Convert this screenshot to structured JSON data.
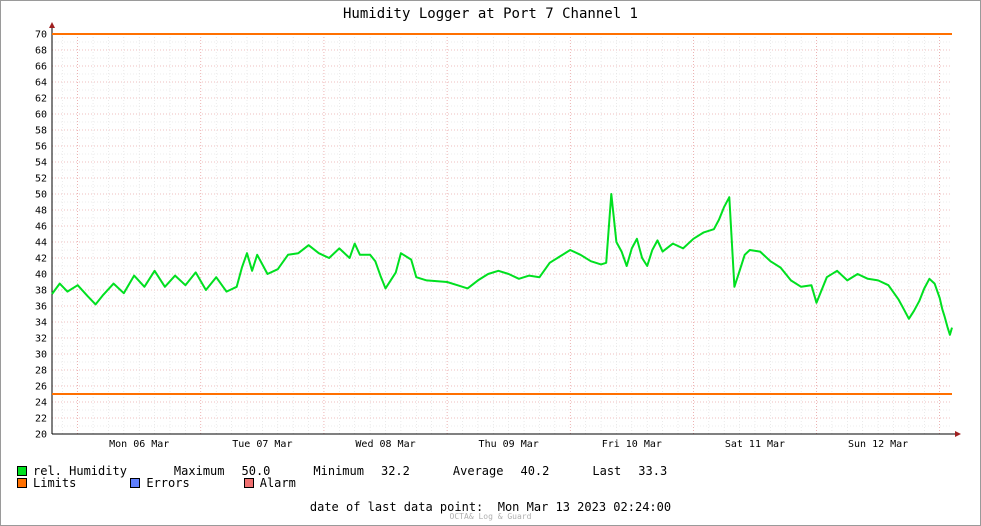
{
  "chart_data": {
    "type": "line",
    "title": "Humidity Logger at Port 7 Channel 1",
    "ylim": [
      20,
      70
    ],
    "y_ticks": [
      20,
      22,
      24,
      26,
      28,
      30,
      32,
      34,
      36,
      38,
      40,
      42,
      44,
      46,
      48,
      50,
      52,
      54,
      56,
      58,
      60,
      62,
      64,
      66,
      68,
      70
    ],
    "x_tick_labels": [
      "Mon 06 Mar",
      "Tue 07 Mar",
      "Wed 08 Mar",
      "Thu 09 Mar",
      "Fri 10 Mar",
      "Sat 11 Mar",
      "Sun 12 Mar"
    ],
    "grid": true,
    "x_start": "2023-03-05 19:00",
    "x_end": "2023-03-13 02:24",
    "series": [
      {
        "name": "rel. Humidity",
        "color": "#00e020",
        "points": [
          [
            "2023-03-05 19:00",
            37.5
          ],
          [
            "2023-03-05 20:30",
            38.8
          ],
          [
            "2023-03-05 22:00",
            37.8
          ],
          [
            "2023-03-06 00:00",
            38.6
          ],
          [
            "2023-03-06 02:00",
            37.2
          ],
          [
            "2023-03-06 03:30",
            36.2
          ],
          [
            "2023-03-06 05:00",
            37.4
          ],
          [
            "2023-03-06 07:00",
            38.8
          ],
          [
            "2023-03-06 09:00",
            37.6
          ],
          [
            "2023-03-06 11:00",
            39.8
          ],
          [
            "2023-03-06 13:00",
            38.4
          ],
          [
            "2023-03-06 15:00",
            40.4
          ],
          [
            "2023-03-06 17:00",
            38.4
          ],
          [
            "2023-03-06 19:00",
            39.8
          ],
          [
            "2023-03-06 21:00",
            38.6
          ],
          [
            "2023-03-06 23:00",
            40.2
          ],
          [
            "2023-03-07 01:00",
            38.0
          ],
          [
            "2023-03-07 03:00",
            39.6
          ],
          [
            "2023-03-07 05:00",
            37.8
          ],
          [
            "2023-03-07 07:00",
            38.4
          ],
          [
            "2023-03-07 08:00",
            40.8
          ],
          [
            "2023-03-07 09:00",
            42.6
          ],
          [
            "2023-03-07 10:00",
            40.4
          ],
          [
            "2023-03-07 11:00",
            42.4
          ],
          [
            "2023-03-07 13:00",
            40.0
          ],
          [
            "2023-03-07 15:00",
            40.6
          ],
          [
            "2023-03-07 17:00",
            42.4
          ],
          [
            "2023-03-07 19:00",
            42.6
          ],
          [
            "2023-03-07 21:00",
            43.6
          ],
          [
            "2023-03-07 23:00",
            42.6
          ],
          [
            "2023-03-08 01:00",
            42.0
          ],
          [
            "2023-03-08 03:00",
            43.2
          ],
          [
            "2023-03-08 05:00",
            42.0
          ],
          [
            "2023-03-08 06:00",
            43.8
          ],
          [
            "2023-03-08 07:00",
            42.4
          ],
          [
            "2023-03-08 09:00",
            42.4
          ],
          [
            "2023-03-08 10:00",
            41.6
          ],
          [
            "2023-03-08 11:00",
            39.8
          ],
          [
            "2023-03-08 12:00",
            38.2
          ],
          [
            "2023-03-08 14:00",
            40.2
          ],
          [
            "2023-03-08 15:00",
            42.6
          ],
          [
            "2023-03-08 17:00",
            41.8
          ],
          [
            "2023-03-08 18:00",
            39.6
          ],
          [
            "2023-03-08 20:00",
            39.2
          ],
          [
            "2023-03-09 00:00",
            39.0
          ],
          [
            "2023-03-09 02:00",
            38.6
          ],
          [
            "2023-03-09 04:00",
            38.2
          ],
          [
            "2023-03-09 06:00",
            39.2
          ],
          [
            "2023-03-09 08:00",
            40.0
          ],
          [
            "2023-03-09 10:00",
            40.4
          ],
          [
            "2023-03-09 12:00",
            40.0
          ],
          [
            "2023-03-09 14:00",
            39.4
          ],
          [
            "2023-03-09 16:00",
            39.8
          ],
          [
            "2023-03-09 18:00",
            39.6
          ],
          [
            "2023-03-09 20:00",
            41.4
          ],
          [
            "2023-03-09 22:00",
            42.2
          ],
          [
            "2023-03-10 00:00",
            43.0
          ],
          [
            "2023-03-10 02:00",
            42.4
          ],
          [
            "2023-03-10 04:00",
            41.6
          ],
          [
            "2023-03-10 06:00",
            41.2
          ],
          [
            "2023-03-10 07:00",
            41.4
          ],
          [
            "2023-03-10 08:00",
            50.0
          ],
          [
            "2023-03-10 09:00",
            44.0
          ],
          [
            "2023-03-10 10:00",
            42.8
          ],
          [
            "2023-03-10 11:00",
            41.0
          ],
          [
            "2023-03-10 12:00",
            43.2
          ],
          [
            "2023-03-10 13:00",
            44.4
          ],
          [
            "2023-03-10 14:00",
            42.0
          ],
          [
            "2023-03-10 15:00",
            41.0
          ],
          [
            "2023-03-10 16:00",
            43.0
          ],
          [
            "2023-03-10 17:00",
            44.2
          ],
          [
            "2023-03-10 18:00",
            42.8
          ],
          [
            "2023-03-10 20:00",
            43.8
          ],
          [
            "2023-03-10 22:00",
            43.2
          ],
          [
            "2023-03-11 00:00",
            44.4
          ],
          [
            "2023-03-11 02:00",
            45.2
          ],
          [
            "2023-03-11 04:00",
            45.6
          ],
          [
            "2023-03-11 05:00",
            46.8
          ],
          [
            "2023-03-11 06:00",
            48.4
          ],
          [
            "2023-03-11 07:00",
            49.6
          ],
          [
            "2023-03-11 08:00",
            38.4
          ],
          [
            "2023-03-11 09:00",
            40.4
          ],
          [
            "2023-03-11 10:00",
            42.4
          ],
          [
            "2023-03-11 11:00",
            43.0
          ],
          [
            "2023-03-11 13:00",
            42.8
          ],
          [
            "2023-03-11 15:00",
            41.6
          ],
          [
            "2023-03-11 17:00",
            40.8
          ],
          [
            "2023-03-11 19:00",
            39.2
          ],
          [
            "2023-03-11 21:00",
            38.4
          ],
          [
            "2023-03-11 23:00",
            38.6
          ],
          [
            "2023-03-12 00:00",
            36.4
          ],
          [
            "2023-03-12 02:00",
            39.6
          ],
          [
            "2023-03-12 04:00",
            40.4
          ],
          [
            "2023-03-12 06:00",
            39.2
          ],
          [
            "2023-03-12 08:00",
            40.0
          ],
          [
            "2023-03-12 10:00",
            39.4
          ],
          [
            "2023-03-12 12:00",
            39.2
          ],
          [
            "2023-03-12 14:00",
            38.6
          ],
          [
            "2023-03-12 16:00",
            36.8
          ],
          [
            "2023-03-12 17:00",
            35.6
          ],
          [
            "2023-03-12 18:00",
            34.4
          ],
          [
            "2023-03-12 19:00",
            35.4
          ],
          [
            "2023-03-12 20:00",
            36.6
          ],
          [
            "2023-03-12 21:00",
            38.2
          ],
          [
            "2023-03-12 22:00",
            39.4
          ],
          [
            "2023-03-12 23:00",
            38.8
          ],
          [
            "2023-03-13 00:00",
            37.0
          ],
          [
            "2023-03-13 00:30",
            35.6
          ],
          [
            "2023-03-13 01:00",
            34.6
          ],
          [
            "2023-03-13 01:30",
            33.4
          ],
          [
            "2023-03-13 02:00",
            32.4
          ],
          [
            "2023-03-13 02:24",
            33.3
          ]
        ]
      },
      {
        "name": "Limits",
        "color": "#ff7000",
        "values": [
          70,
          25
        ]
      }
    ]
  },
  "legend": {
    "humidity": {
      "label": "rel. Humidity",
      "color": "#00e020"
    },
    "limits": {
      "label": "Limits",
      "color": "#ff7000"
    },
    "errors": {
      "label": "Errors",
      "color": "#6080ff"
    },
    "alarm": {
      "label": "Alarm",
      "color": "#f07070"
    }
  },
  "stats": {
    "maximum_label": "Maximum",
    "maximum": "50.0",
    "minimum_label": "Minimum",
    "minimum": "32.2",
    "average_label": "Average",
    "average": "40.2",
    "last_label": "Last",
    "last": "33.3"
  },
  "footer": {
    "last_point": "date of last data point:  Mon Mar 13 2023 02:24:00",
    "credit": "OCTA& Log & Guard"
  }
}
